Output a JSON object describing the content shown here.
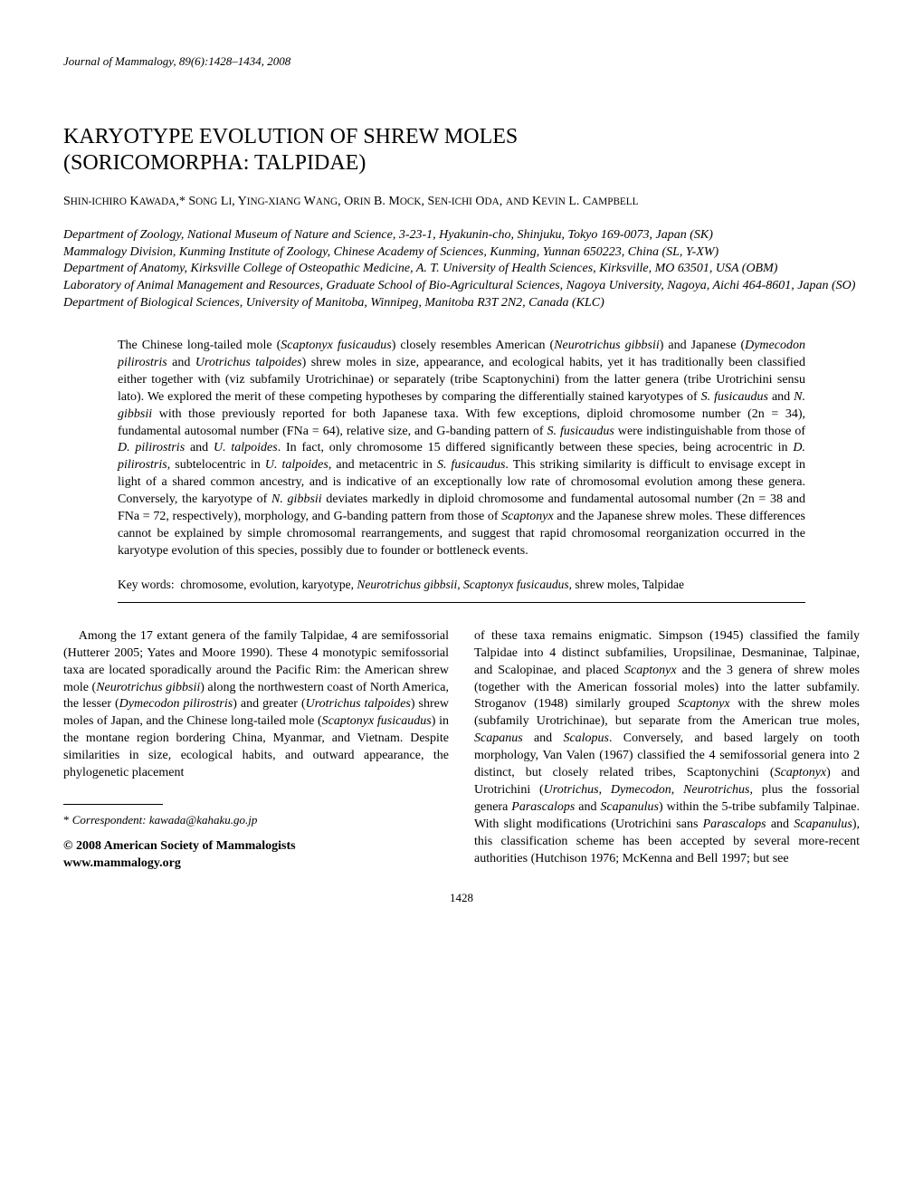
{
  "running_head": "Journal of Mammalogy, 89(6):1428–1434, 2008",
  "title_line1": "KARYOTYPE EVOLUTION OF SHREW MOLES",
  "title_line2": "(SORICOMORPHA: TALPIDAE)",
  "authors_html": "S<span style='font-size:0.8em'>HIN-ICHIRO</span> K<span style='font-size:0.8em'>AWADA</span>,* S<span style='font-size:0.8em'>ONG</span> L<span style='font-size:0.8em'>I</span>, Y<span style='font-size:0.8em'>ING-XIANG</span> W<span style='font-size:0.8em'>ANG</span>, O<span style='font-size:0.8em'>RIN</span> B. M<span style='font-size:0.8em'>OCK</span>, S<span style='font-size:0.8em'>EN-ICHI</span> O<span style='font-size:0.8em'>DA</span>, <span style='font-size:0.85em'>AND</span> K<span style='font-size:0.8em'>EVIN</span> L. C<span style='font-size:0.8em'>AMPBELL</span>",
  "affiliations": [
    "Department of Zoology, National Museum of Nature and Science, 3-23-1, Hyakunin-cho, Shinjuku, Tokyo 169-0073, Japan (SK)",
    "Mammalogy Division, Kunming Institute of Zoology, Chinese Academy of Sciences, Kunming, Yunnan 650223, China (SL, Y-XW)",
    "Department of Anatomy, Kirksville College of Osteopathic Medicine, A. T. University of Health Sciences, Kirksville, MO 63501, USA (OBM)",
    "Laboratory of Animal Management and Resources, Graduate School of Bio-Agricultural Sciences, Nagoya University, Nagoya, Aichi 464-8601, Japan (SO)",
    "Department of Biological Sciences, University of Manitoba, Winnipeg, Manitoba R3T 2N2, Canada (KLC)"
  ],
  "abstract_html": "The Chinese long-tailed mole (<span class='italic'>Scaptonyx fusicaudus</span>) closely resembles American (<span class='italic'>Neurotrichus gibbsii</span>) and Japanese (<span class='italic'>Dymecodon pilirostris</span> and <span class='italic'>Urotrichus talpoides</span>) shrew moles in size, appearance, and ecological habits, yet it has traditionally been classified either together with (viz subfamily Urotrichinae) or separately (tribe Scaptonychini) from the latter genera (tribe Urotrichini sensu lato). We explored the merit of these competing hypotheses by comparing the differentially stained karyotypes of <span class='italic'>S. fusicaudus</span> and <span class='italic'>N. gibbsii</span> with those previously reported for both Japanese taxa. With few exceptions, diploid chromosome number (2n = 34), fundamental autosomal number (FNa = 64), relative size, and G-banding pattern of <span class='italic'>S. fusicaudus</span> were indistinguishable from those of <span class='italic'>D. pilirostris</span> and <span class='italic'>U. talpoides</span>. In fact, only chromosome 15 differed significantly between these species, being acrocentric in <span class='italic'>D. pilirostris</span>, subtelocentric in <span class='italic'>U. talpoides</span>, and metacentric in <span class='italic'>S. fusicaudus</span>. This striking similarity is difficult to envisage except in light of a shared common ancestry, and is indicative of an exceptionally low rate of chromosomal evolution among these genera. Conversely, the karyotype of <span class='italic'>N. gibbsii</span> deviates markedly in diploid chromosome and fundamental autosomal number (2n = 38 and FNa = 72, respectively), morphology, and G-banding pattern from those of <span class='italic'>Scaptonyx</span> and the Japanese shrew moles. These differences cannot be explained by simple chromosomal rearrangements, and suggest that rapid chromosomal reorganization occurred in the karyotype evolution of this species, possibly due to founder or bottleneck events.",
  "keywords_label": "Key words:",
  "keywords_html": "chromosome, evolution, karyotype, <span class='italic'>Neurotrichus gibbsii</span>, <span class='italic'>Scaptonyx fusicaudus</span>, shrew moles, Talpidae",
  "body_col1_html": "Among the 17 extant genera of the family Talpidae, 4 are semifossorial (Hutterer 2005; Yates and Moore 1990). These 4 monotypic semifossorial taxa are located sporadically around the Pacific Rim: the American shrew mole (<span class='italic'>Neurotrichus gibbsii</span>) along the northwestern coast of North America, the lesser (<span class='italic'>Dymecodon pilirostris</span>) and greater (<span class='italic'>Urotrichus talpoides</span>) shrew moles of Japan, and the Chinese long-tailed mole (<span class='italic'>Scaptonyx fusicaudus</span>) in the montane region bordering China, Myanmar, and Vietnam. Despite similarities in size, ecological habits, and outward appearance, the phylogenetic placement",
  "body_col2_html": "of these taxa remains enigmatic. Simpson (1945) classified the family Talpidae into 4 distinct subfamilies, Uropsilinae, Desmaninae, Talpinae, and Scalopinae, and placed <span class='italic'>Scaptonyx</span> and the 3 genera of shrew moles (together with the American fossorial moles) into the latter subfamily. Stroganov (1948) similarly grouped <span class='italic'>Scaptonyx</span> with the shrew moles (subfamily Urotrichinae), but separate from the American true moles, <span class='italic'>Scapanus</span> and <span class='italic'>Scalopus</span>. Conversely, and based largely on tooth morphology, Van Valen (1967) classified the 4 semifossorial genera into 2 distinct, but closely related tribes, Scaptonychini (<span class='italic'>Scaptonyx</span>) and Urotrichini (<span class='italic'>Urotrichus</span>, <span class='italic'>Dymecodon</span>, <span class='italic'>Neurotrichus</span>, plus the fossorial genera <span class='italic'>Parascalops</span> and <span class='italic'>Scapanulus</span>) within the 5-tribe subfamily Talpinae. With slight modifications (Urotrichini sans <span class='italic'>Parascalops</span> and <span class='italic'>Scapanulus</span>), this classification scheme has been accepted by several more-recent authorities (Hutchison 1976; McKenna and Bell 1997; but see",
  "correspondent_html": "* <span class='italic'>Correspondent: kawada@kahaku.go.jp</span>",
  "copyright": "© 2008 American Society of Mammalogists",
  "url": "www.mammalogy.org",
  "page_number": "1428"
}
